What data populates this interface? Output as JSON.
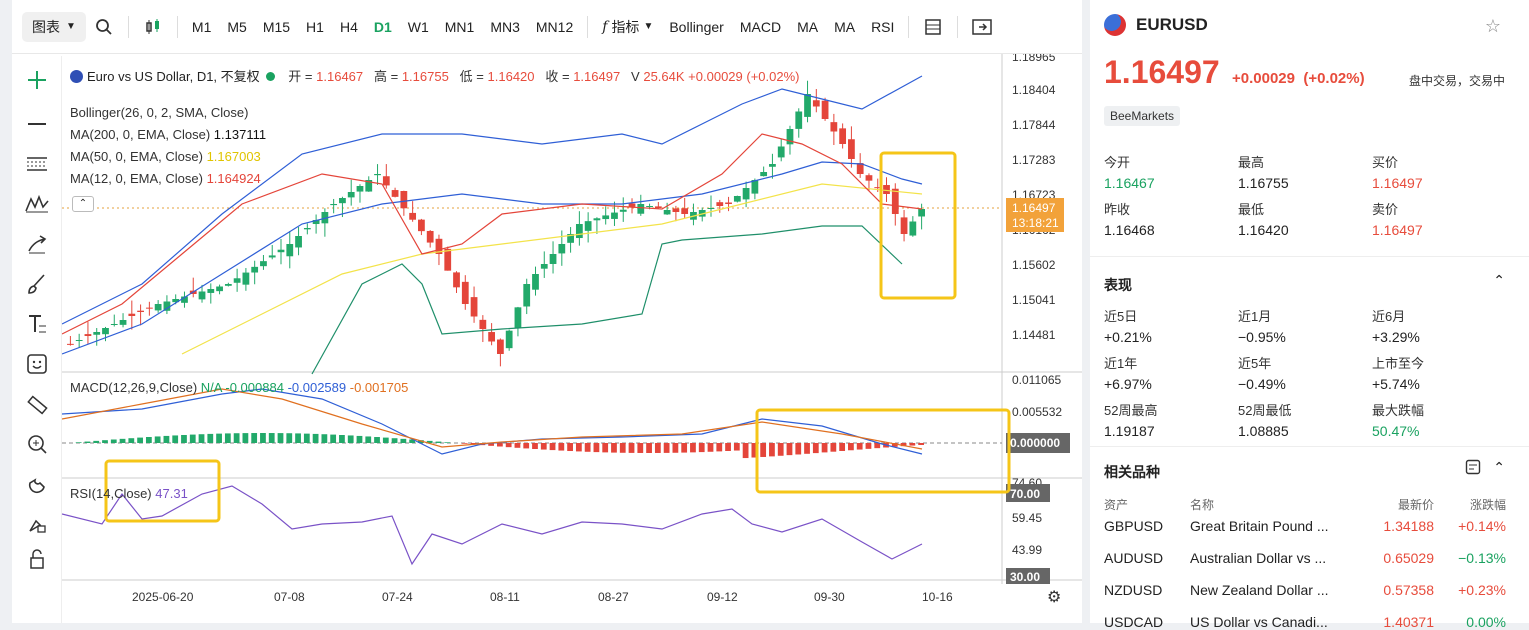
{
  "toolbar": {
    "chart_select": "图表",
    "timeframes": [
      "M1",
      "M5",
      "M15",
      "H1",
      "H4",
      "D1",
      "W1",
      "MN1",
      "MN3",
      "MN12"
    ],
    "active_timeframe": "D1",
    "indicators_label": "指标",
    "indicator_buttons": [
      "Bollinger",
      "MACD",
      "MA",
      "MA",
      "RSI"
    ]
  },
  "legend": {
    "title": "Euro vs US Dollar, D1, 不复权",
    "open_label": "开 =",
    "open": "1.16467",
    "high_label": "高 =",
    "high": "1.16755",
    "low_label": "低 =",
    "low": "1.16420",
    "close_label": "收 =",
    "close": "1.16497",
    "vol_label": "V",
    "vol": "25.64K",
    "change": "+0.00029 (+0.02%)",
    "bollinger": "Bollinger(26, 0, 2, SMA, Close)",
    "ma200": "MA(200, 0, EMA, Close)",
    "ma200_val": "1.137111",
    "ma50": "MA(50, 0, EMA, Close)",
    "ma50_val": "1.167003",
    "ma12": "MA(12, 0, EMA, Close)",
    "ma12_val": "1.164924",
    "macd": "MACD(12,26,9,Close)",
    "macd_na": "N/A",
    "macd_v1": "-0.000884",
    "macd_v2": "-0.002589",
    "macd_v3": "-0.001705",
    "rsi": "RSI(14,Close)",
    "rsi_val": "47.31"
  },
  "price_axis": {
    "ticks": [
      "1.18965",
      "1.18404",
      "1.17844",
      "1.17283",
      "1.16723",
      "1.16162",
      "1.15602",
      "1.15041",
      "1.14481"
    ],
    "current_price": "1.16497",
    "countdown": "13:18:21"
  },
  "macd_axis": {
    "ticks": [
      "0.011065",
      "0.005532"
    ],
    "zero": "0.000000"
  },
  "rsi_axis": {
    "top": "70.00",
    "ticks": [
      "59.45",
      "43.99"
    ],
    "bottom": "30.00",
    "partial": "74.60"
  },
  "date_axis": [
    "2025-06-20",
    "07-08",
    "07-24",
    "08-11",
    "08-27",
    "09-12",
    "09-30",
    "10-16"
  ],
  "quote": {
    "symbol": "EURUSD",
    "price": "1.16497",
    "change": "+0.00029",
    "change_pct": "(+0.02%)",
    "status": "盘中交易，交易中",
    "broker": "BeeMarkets",
    "stats": [
      {
        "label": "今开",
        "value": "1.16467",
        "color": "green"
      },
      {
        "label": "最高",
        "value": "1.16755",
        "color": ""
      },
      {
        "label": "买价",
        "value": "1.16497",
        "color": "red"
      },
      {
        "label": "昨收",
        "value": "1.16468",
        "color": ""
      },
      {
        "label": "最低",
        "value": "1.16420",
        "color": ""
      },
      {
        "label": "卖价",
        "value": "1.16497",
        "color": "red"
      }
    ]
  },
  "performance": {
    "title": "表现",
    "items": [
      {
        "label": "近5日",
        "value": "+0.21%",
        "color": ""
      },
      {
        "label": "近1月",
        "value": "−0.95%",
        "color": ""
      },
      {
        "label": "近6月",
        "value": "+3.29%",
        "color": ""
      },
      {
        "label": "近1年",
        "value": "+6.97%",
        "color": ""
      },
      {
        "label": "近5年",
        "value": "−0.49%",
        "color": ""
      },
      {
        "label": "上市至今",
        "value": "+5.74%",
        "color": ""
      },
      {
        "label": "52周最高",
        "value": "1.19187",
        "color": ""
      },
      {
        "label": "52周最低",
        "value": "1.08885",
        "color": ""
      },
      {
        "label": "最大跌幅",
        "value": "50.47%",
        "color": "green"
      }
    ]
  },
  "related": {
    "title": "相关品种",
    "headers": [
      "资产",
      "名称",
      "最新价",
      "涨跌幅"
    ],
    "rows": [
      {
        "asset": "GBPUSD",
        "name": "Great Britain Pound ...",
        "price": "1.34188",
        "chg": "+0.14%",
        "chg_color": "red"
      },
      {
        "asset": "AUDUSD",
        "name": "Australian Dollar vs ...",
        "price": "0.65029",
        "chg": "−0.13%",
        "chg_color": "green"
      },
      {
        "asset": "NZDUSD",
        "name": "New Zealand Dollar ...",
        "price": "0.57358",
        "chg": "+0.23%",
        "chg_color": "red"
      },
      {
        "asset": "USDCAD",
        "name": "US Dollar vs Canadi...",
        "price": "1.40371",
        "chg": "0.00%",
        "chg_color": "green"
      }
    ]
  },
  "colors": {
    "up": "#22a96a",
    "down": "#e4453a",
    "highlight": "#f5c518",
    "bb": "#2f5fd6",
    "ma200": "#f3e34a",
    "ma50_lower": "#1f8f6a"
  }
}
